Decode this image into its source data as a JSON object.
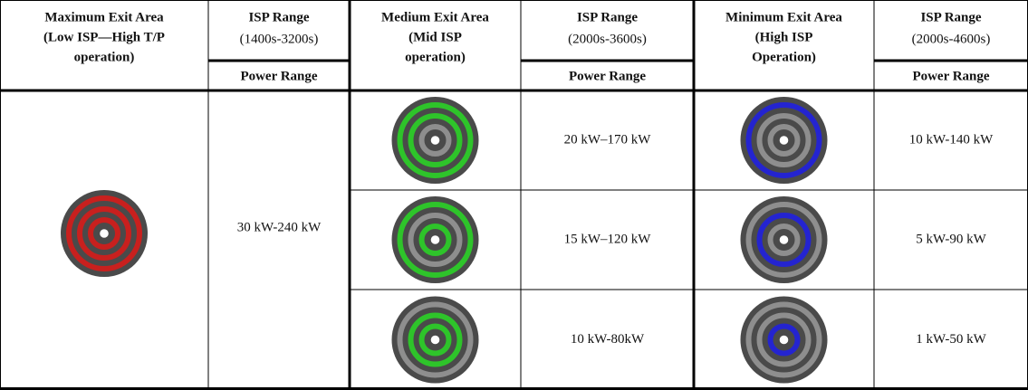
{
  "sections": [
    {
      "exit_area": [
        "Maximum Exit Area",
        "(Low ISP—High T/P",
        "operation)"
      ],
      "isp_label": "ISP Range",
      "isp_range": "(1400s-3200s)",
      "power_label": "Power Range",
      "power_ranges": [
        "30 kW-240 kW"
      ]
    },
    {
      "exit_area": [
        "Medium Exit Area",
        "(Mid ISP",
        "operation)"
      ],
      "isp_label": "ISP Range",
      "isp_range": "(2000s-3600s)",
      "power_label": "Power Range",
      "power_ranges": [
        "20 kW–170 kW",
        "15 kW–120 kW",
        "10 kW-80kW"
      ]
    },
    {
      "exit_area": [
        "Minimum Exit Area",
        "(High ISP",
        "Operation)"
      ],
      "isp_label": "ISP Range",
      "isp_range": "(2000s-4600s)",
      "power_label": "Power Range",
      "power_ranges": [
        "10 kW-140 kW",
        "5 kW-90 kW",
        "1 kW-50 kW"
      ]
    }
  ]
}
